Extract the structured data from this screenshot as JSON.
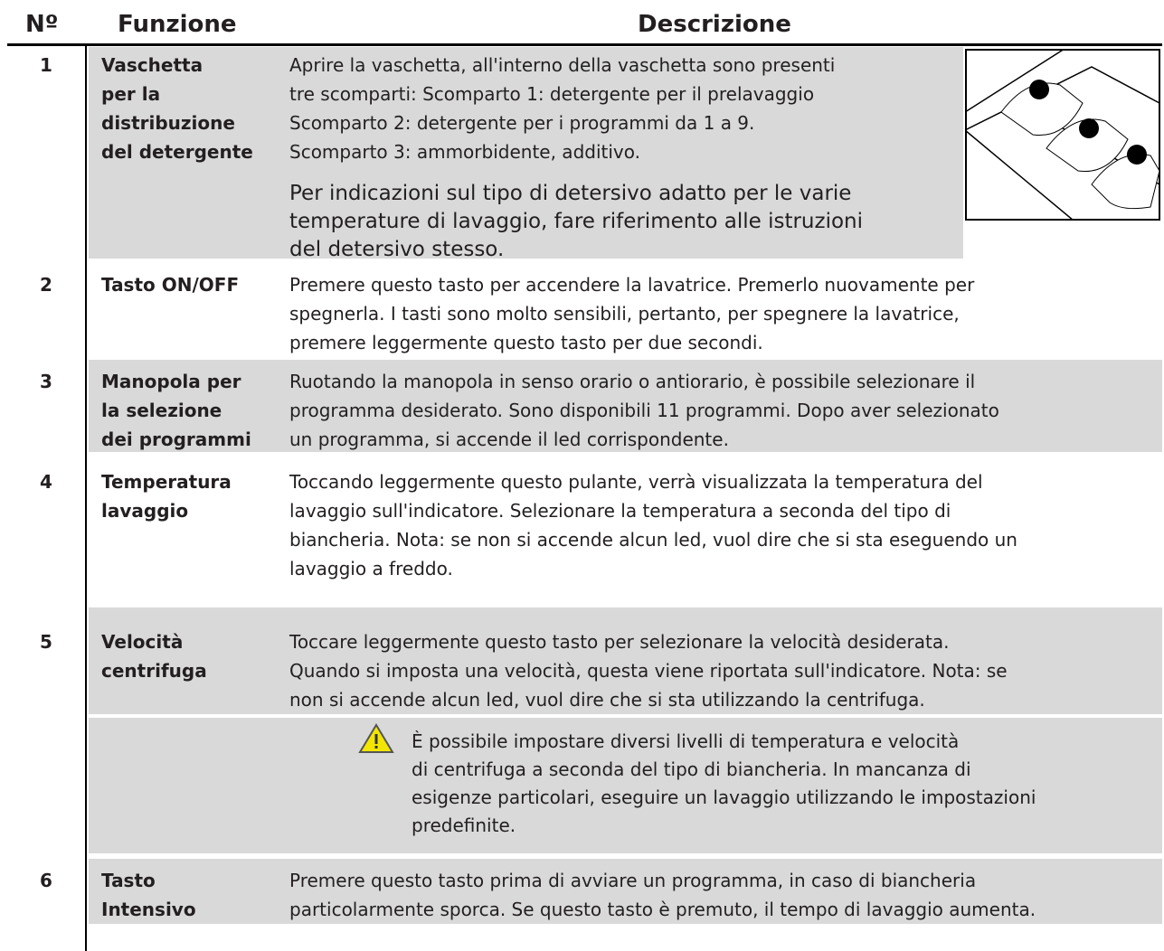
{
  "header": {
    "number": "Nº",
    "function": "Funzione",
    "description": "Descrizione"
  },
  "rows": [
    {
      "number": "1",
      "function": [
        "Vaschetta",
        "per la",
        "distribuzione",
        "del detergente"
      ],
      "description": [
        "Aprire la vaschetta, all'interno della vaschetta sono presenti",
        "tre scomparti: Scomparto 1: detergente per il prelavaggio",
        "Scomparto 2: detergente per i programmi da 1 a 9.",
        "Scomparto 3: ammorbidente, additivo."
      ],
      "description_large": [
        "Per  indicazioni sul tipo di detersivo adatto per le varie",
        "temperature di lavaggio, fare riferimento alle istruzioni",
        "del detersivo stesso."
      ]
    },
    {
      "number": "2",
      "function": [
        "Tasto ON/OFF"
      ],
      "description": [
        "Premere questo tasto per accendere la lavatrice. Premerlo nuovamente per",
        "spegnerla. I tasti sono molto sensibili, pertanto, per spegnere la lavatrice,",
        "premere leggermente questo tasto per due secondi."
      ]
    },
    {
      "number": "3",
      "function": [
        "Manopola per",
        "la selezione",
        "dei programmi"
      ],
      "description": [
        "Ruotando la manopola in senso orario o antiorario, è possibile selezionare il",
        "programma desiderato. Sono disponibili 11 programmi. Dopo aver selezionato",
        "un programma, si accende il led corrispondente."
      ]
    },
    {
      "number": "4",
      "function": [
        "Temperatura",
        "lavaggio"
      ],
      "description": [
        "Toccando leggermente questo pulante, verrà visualizzata la temperatura del",
        "lavaggio sull'indicatore. Selezionare la temperatura a seconda del tipo di",
        "biancheria. Nota: se non si accende alcun led, vuol dire che si sta eseguendo un",
        "lavaggio a freddo."
      ]
    },
    {
      "number": "5",
      "function": [
        "Velocità",
        "centrifuga"
      ],
      "description": [
        "Toccare leggermente questo tasto per selezionare la velocità desiderata.",
        "Quando si imposta una velocità, questa viene riportata sull'indicatore. Nota: se",
        "non si accende alcun led, vuol dire che si sta utilizzando la centrifuga."
      ]
    },
    {
      "number": "6",
      "function": [
        "Tasto",
        "Intensivo"
      ],
      "description": [
        "Premere questo tasto prima di avviare un programma, in caso di biancheria",
        "particolarmente sporca. Se questo tasto è premuto, il tempo di lavaggio aumenta."
      ]
    }
  ],
  "note": {
    "lines": [
      "È possibile impostare diversi livelli di temperatura e velocità",
      "di centrifuga a seconda del tipo di biancheria. In mancanza di",
      "esigenze particolari, eseguire un lavaggio utilizzando le impostazioni",
      "predefinite."
    ]
  }
}
